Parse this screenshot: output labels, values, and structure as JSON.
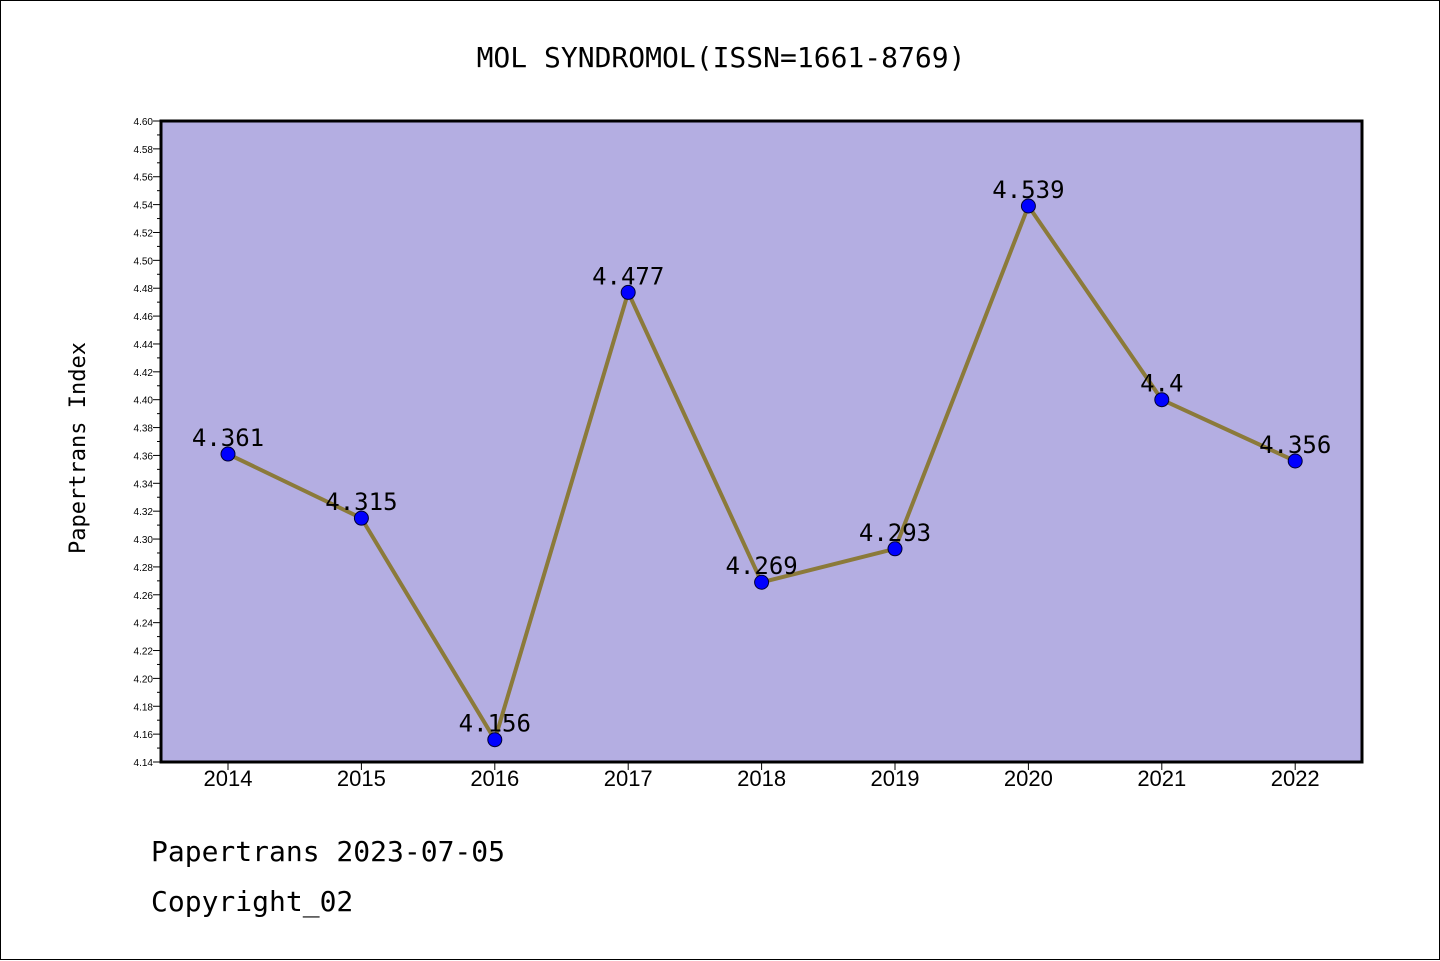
{
  "footer": {
    "line1": "Papertrans 2023-07-05",
    "line2": "Copyright_02"
  },
  "colors": {
    "plot_background": "#b4aee2",
    "line": "#8b7a3a",
    "marker": "#0000ff",
    "axis": "#000000"
  },
  "chart_data": {
    "type": "line",
    "title": "MOL SYNDROMOL(ISSN=1661-8769)",
    "xlabel": "",
    "ylabel": "Papertrans Index",
    "categories": [
      "2014",
      "2015",
      "2016",
      "2017",
      "2018",
      "2019",
      "2020",
      "2021",
      "2022"
    ],
    "series": [
      {
        "values": [
          4.361,
          4.315,
          4.156,
          4.477,
          4.269,
          4.293,
          4.539,
          4.4,
          4.356
        ],
        "data_labels": [
          "4.361",
          "4.315",
          "4.156",
          "4.477",
          "4.269",
          "4.293",
          "4.539",
          "4.4",
          "4.356"
        ]
      }
    ],
    "ylim": [
      4.14,
      4.6
    ],
    "yticks": [
      "4.14",
      "4.16",
      "4.18",
      "4.20",
      "4.22",
      "4.24",
      "4.26",
      "4.28",
      "4.30",
      "4.32",
      "4.34",
      "4.36",
      "4.38",
      "4.40",
      "4.42",
      "4.44",
      "4.46",
      "4.48",
      "4.50",
      "4.52",
      "4.54",
      "4.56",
      "4.58",
      "4.60"
    ],
    "grid": false,
    "legend": "none",
    "marker": "circle"
  }
}
